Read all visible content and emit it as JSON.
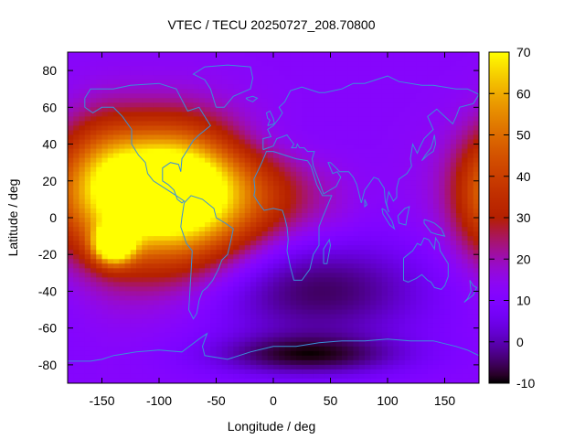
{
  "chart_data": {
    "type": "heatmap",
    "title": "VTEC / TECU 20250727_208.70800",
    "xlabel": "Longitude / deg",
    "ylabel": "Latitude / deg",
    "xlim": [
      -180,
      180
    ],
    "ylim": [
      -90,
      90
    ],
    "x_ticks": [
      -150,
      -100,
      -50,
      0,
      50,
      100,
      150
    ],
    "y_ticks": [
      -80,
      -60,
      -40,
      -20,
      0,
      20,
      40,
      60,
      80
    ],
    "colorbar": {
      "min": -10,
      "max": 70,
      "ticks": [
        -10,
        0,
        10,
        20,
        30,
        40,
        50,
        60,
        70
      ]
    },
    "grid": false,
    "colormap": "gnuplot-pm3d",
    "background_level": 12,
    "features": [
      {
        "lon": -140,
        "lat": -15,
        "value": 68,
        "lon_spread": 12,
        "lat_spread": 7
      },
      {
        "lon": -110,
        "lat": 5,
        "value": 45,
        "lon_spread": 50,
        "lat_spread": 28
      },
      {
        "lon": -80,
        "lat": 15,
        "value": 42,
        "lon_spread": 40,
        "lat_spread": 25
      },
      {
        "lon": -100,
        "lat": 20,
        "value": 40,
        "lon_spread": 55,
        "lat_spread": 20
      },
      {
        "lon": -150,
        "lat": 20,
        "value": 30,
        "lon_spread": 25,
        "lat_spread": 25
      },
      {
        "lon": -40,
        "lat": 5,
        "value": 22,
        "lon_spread": 35,
        "lat_spread": 20
      },
      {
        "lon": 5,
        "lat": 10,
        "value": 22,
        "lon_spread": 30,
        "lat_spread": 15
      },
      {
        "lon": 55,
        "lat": 5,
        "value": 15,
        "lon_spread": 20,
        "lat_spread": 15
      },
      {
        "lon": -20,
        "lat": 42,
        "value": 8,
        "lon_spread": 40,
        "lat_spread": 10
      },
      {
        "lon": 40,
        "lat": -40,
        "value": -7,
        "lon_spread": 70,
        "lat_spread": 20
      },
      {
        "lon": 30,
        "lat": -75,
        "value": -8,
        "lon_spread": 60,
        "lat_spread": 8
      },
      {
        "lon": 175,
        "lat": 10,
        "value": 18,
        "lon_spread": 15,
        "lat_spread": 20
      }
    ]
  },
  "continent_outline_color": "#3a8fd8"
}
